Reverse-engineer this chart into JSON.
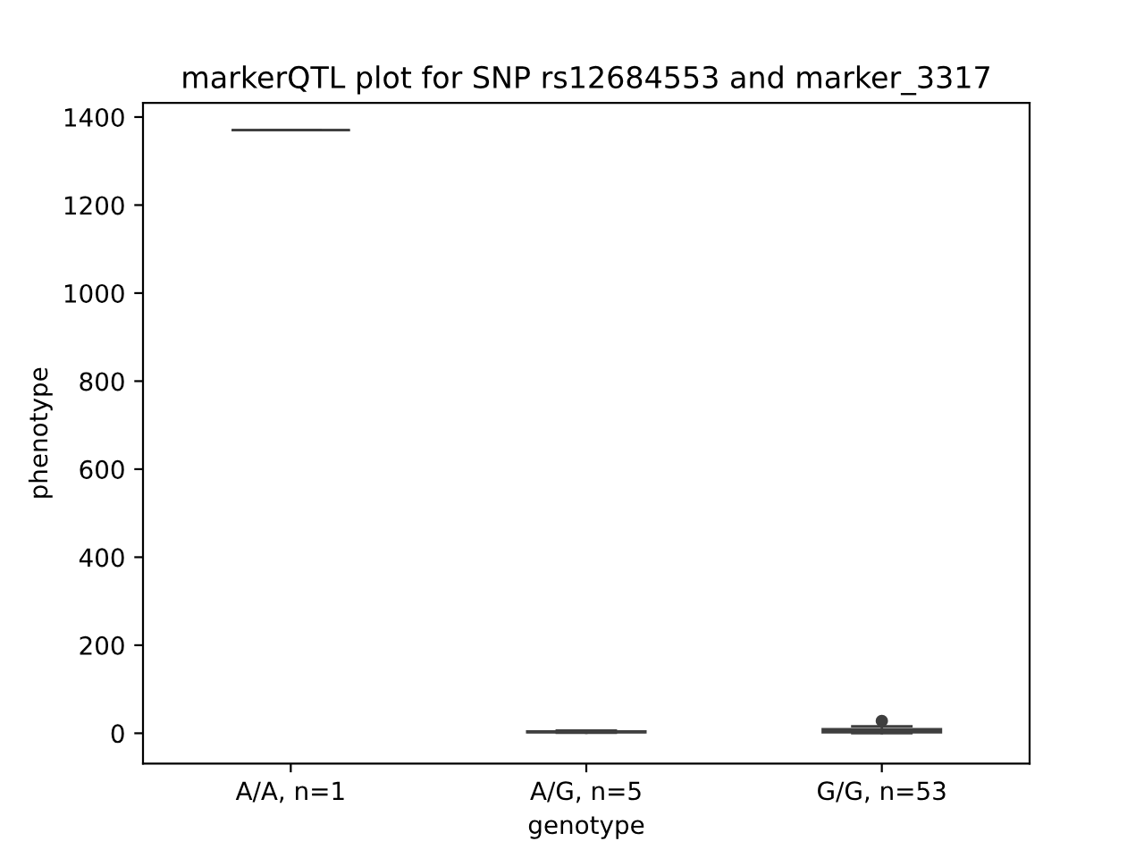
{
  "chart_data": {
    "type": "box",
    "title": "markerQTL plot for SNP rs12684553 and marker_3317",
    "xlabel": "genotype",
    "ylabel": "phenotype",
    "categories": [
      "A/A, n=1",
      "A/G, n=5",
      "G/G, n=53"
    ],
    "boxes": [
      {
        "low": 1370,
        "q1": 1370,
        "median": 1370,
        "q3": 1370,
        "high": 1370
      },
      {
        "low": 1,
        "q1": 2,
        "median": 3,
        "q3": 4,
        "high": 6
      },
      {
        "low": 0,
        "q1": 2,
        "median": 5,
        "q3": 9,
        "high": 16,
        "outliers": [
          28
        ]
      }
    ],
    "color": "#3f3f3f",
    "ylim": [
      -69,
      1432
    ],
    "yticks": [
      0,
      200,
      400,
      600,
      800,
      1000,
      1200,
      1400
    ],
    "grid": false
  }
}
